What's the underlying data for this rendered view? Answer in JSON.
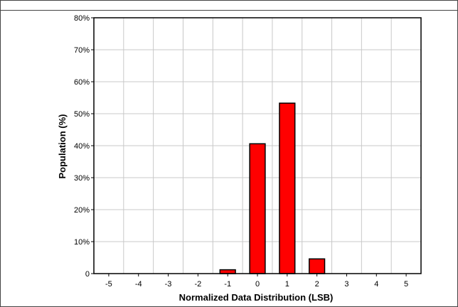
{
  "chart_data": {
    "type": "bar",
    "title": "",
    "xlabel": "Normalized Data Distribution (LSB)",
    "ylabel": "Population (%)",
    "categories": [
      "-5",
      "-4",
      "-3",
      "-2",
      "-1",
      "0",
      "1",
      "2",
      "3",
      "4",
      "5"
    ],
    "x": [
      -5,
      -4,
      -3,
      -2,
      -1,
      0,
      1,
      2,
      3,
      4,
      5
    ],
    "values": [
      0,
      0,
      0,
      0,
      1.2,
      40.6,
      53.3,
      4.6,
      0,
      0,
      0
    ],
    "xlim": [
      -5.5,
      5.5
    ],
    "ylim": [
      0,
      80
    ],
    "yticks": [
      0,
      10,
      20,
      30,
      40,
      50,
      60,
      70,
      80
    ],
    "ytick_labels": [
      "0",
      "10%",
      "20%",
      "30%",
      "40%",
      "50%",
      "60%",
      "70%",
      "80%"
    ],
    "grid": true,
    "bar_color": "#ff0000",
    "bar_edge_color": "#000000",
    "grid_color": "#c8c8c8"
  }
}
